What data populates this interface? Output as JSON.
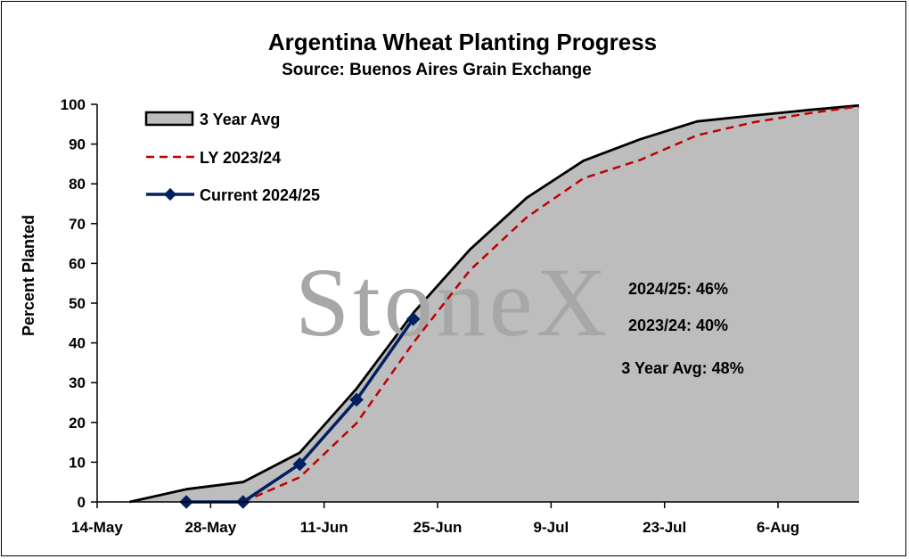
{
  "chart_data": {
    "type": "area",
    "title": "Argentina Wheat Planting Progress",
    "subtitle": "Source: Buenos Aires Grain Exchange",
    "ylabel": "Percent Planted",
    "xlabel": "",
    "ylim": [
      0,
      100
    ],
    "xlim": [
      "2024-05-14",
      "2024-08-16"
    ],
    "y_ticks": [
      "0",
      "10",
      "20",
      "30",
      "40",
      "50",
      "60",
      "70",
      "80",
      "90",
      "100"
    ],
    "x_ticks": [
      {
        "label": "14-May",
        "date": "2024-05-14"
      },
      {
        "label": "28-May",
        "date": "2024-05-28"
      },
      {
        "label": "11-Jun",
        "date": "2024-06-11"
      },
      {
        "label": "25-Jun",
        "date": "2024-06-25"
      },
      {
        "label": "9-Jul",
        "date": "2024-07-09"
      },
      {
        "label": "23-Jul",
        "date": "2024-07-23"
      },
      {
        "label": "6-Aug",
        "date": "2024-08-06"
      }
    ],
    "grid": false,
    "legend_position": "top-left",
    "series": [
      {
        "name": "3 Year Avg",
        "style": "area",
        "color": "#bdbdbd",
        "points": [
          {
            "x": "2024-05-18",
            "y": 0
          },
          {
            "x": "2024-05-25",
            "y": 3.2
          },
          {
            "x": "2024-06-01",
            "y": 5
          },
          {
            "x": "2024-06-08",
            "y": 12.4
          },
          {
            "x": "2024-06-15",
            "y": 28.5
          },
          {
            "x": "2024-06-22",
            "y": 47.5
          },
          {
            "x": "2024-06-29",
            "y": 63.5
          },
          {
            "x": "2024-07-06",
            "y": 76.5
          },
          {
            "x": "2024-07-13",
            "y": 85.8
          },
          {
            "x": "2024-07-20",
            "y": 91.2
          },
          {
            "x": "2024-07-27",
            "y": 95.7
          },
          {
            "x": "2024-08-03",
            "y": 97.2
          },
          {
            "x": "2024-08-10",
            "y": 98.6
          },
          {
            "x": "2024-08-16",
            "y": 99.7
          }
        ]
      },
      {
        "name": "LY 2023/24",
        "style": "dashed",
        "color": "#c00000",
        "points": [
          {
            "x": "2024-06-01",
            "y": 0
          },
          {
            "x": "2024-06-08",
            "y": 6.2
          },
          {
            "x": "2024-06-15",
            "y": 19.8
          },
          {
            "x": "2024-06-22",
            "y": 40
          },
          {
            "x": "2024-06-29",
            "y": 58.3
          },
          {
            "x": "2024-07-06",
            "y": 71.6
          },
          {
            "x": "2024-07-13",
            "y": 81.4
          },
          {
            "x": "2024-07-20",
            "y": 86
          },
          {
            "x": "2024-07-27",
            "y": 92.2
          },
          {
            "x": "2024-08-03",
            "y": 95.5
          },
          {
            "x": "2024-08-10",
            "y": 97.8
          },
          {
            "x": "2024-08-16",
            "y": 99.5
          }
        ]
      },
      {
        "name": "Current 2024/25",
        "style": "line-marker",
        "color": "#002060",
        "points": [
          {
            "x": "2024-05-25",
            "y": 0
          },
          {
            "x": "2024-06-01",
            "y": 0
          },
          {
            "x": "2024-06-08",
            "y": 9.5
          },
          {
            "x": "2024-06-15",
            "y": 25.7
          },
          {
            "x": "2024-06-22",
            "y": 46
          }
        ]
      }
    ],
    "annotations": [
      "2024/25: 46%",
      "2023/24: 40%",
      "3 Year Avg: 48%"
    ],
    "watermark": "StoneX"
  }
}
